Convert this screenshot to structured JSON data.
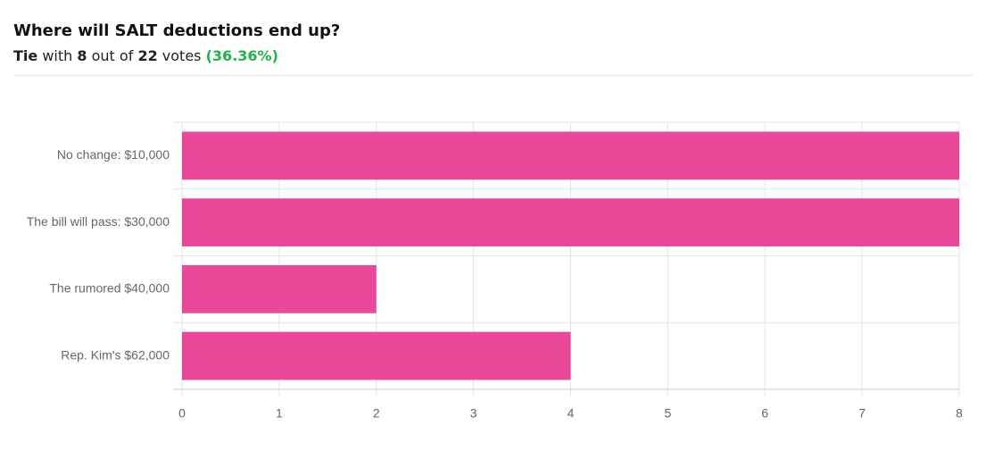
{
  "chart_data": {
    "type": "bar",
    "orientation": "horizontal",
    "title": "Where will SALT deductions end up?",
    "summary": {
      "leader": "Tie",
      "leader_votes": 8,
      "total_votes": 22,
      "percent_label": "(36.36%)",
      "words": [
        "with",
        "out of",
        "votes"
      ]
    },
    "categories": [
      "No change: $10,000",
      "The bill will pass: $30,000",
      "The rumored $40,000",
      "Rep. Kim's $62,000"
    ],
    "values": [
      8,
      8,
      2,
      4
    ],
    "color": "#ea4899",
    "xlim": [
      0,
      8
    ],
    "xticks": [
      0,
      1,
      2,
      3,
      4,
      5,
      6,
      7,
      8
    ],
    "grid": true
  }
}
